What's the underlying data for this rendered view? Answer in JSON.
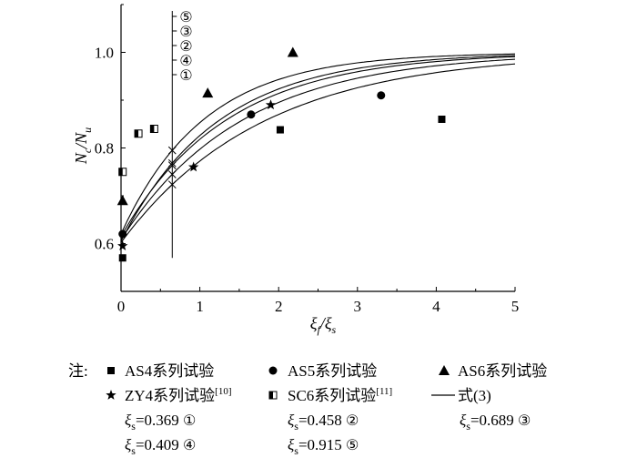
{
  "chart_data": {
    "type": "scatter",
    "xlabel": {
      "main": "ξ",
      "sub1": "f",
      "mid": "/ξ",
      "sub2": "s"
    },
    "ylabel": {
      "n1": "N",
      "s1": "c",
      "mid": "/N",
      "n2": "N",
      "s2": "u"
    },
    "xlim": [
      0,
      5
    ],
    "ylim": [
      0.5,
      1.1
    ],
    "xticks": [
      "0",
      "1",
      "2",
      "3",
      "4",
      "5"
    ],
    "yticks": [
      "0.6",
      "0.8",
      "1.0"
    ],
    "ytick_values": [
      0.6,
      0.8,
      1.0
    ],
    "series": [
      {
        "name": "AS4系列试验",
        "marker": "square",
        "points": [
          [
            0.02,
            0.57
          ],
          [
            2.02,
            0.838
          ],
          [
            4.07,
            0.86
          ]
        ]
      },
      {
        "name": "AS5系列试验",
        "marker": "circle",
        "points": [
          [
            0.02,
            0.62
          ],
          [
            1.65,
            0.87
          ],
          [
            3.3,
            0.91
          ]
        ]
      },
      {
        "name": "AS6系列试验",
        "marker": "triangle",
        "points": [
          [
            0.02,
            0.69
          ],
          [
            1.1,
            0.915
          ],
          [
            2.18,
            1.0
          ]
        ]
      },
      {
        "name": "ZY4系列试验",
        "sup": "[10]",
        "marker": "star",
        "points": [
          [
            0.02,
            0.595
          ],
          [
            0.92,
            0.76
          ],
          [
            1.9,
            0.89
          ]
        ]
      },
      {
        "name": "SC6系列试验",
        "sup": "[11]",
        "marker": "halfsquare",
        "points": [
          [
            0.02,
            0.75
          ],
          [
            0.22,
            0.83
          ],
          [
            0.42,
            0.84
          ]
        ]
      }
    ],
    "curves": [
      {
        "id": "1",
        "a": 0.62,
        "b": 0.38,
        "k": 0.95,
        "label_xi": "0.369",
        "circled": "①"
      },
      {
        "id": "2",
        "a": 0.615,
        "b": 0.385,
        "k": 0.75,
        "label_xi": "0.458",
        "circled": "②"
      },
      {
        "id": "3",
        "a": 0.608,
        "b": 0.392,
        "k": 0.66,
        "label_xi": "0.689",
        "circled": "③"
      },
      {
        "id": "4",
        "a": 0.605,
        "b": 0.395,
        "k": 0.82,
        "label_xi": "0.409",
        "circled": "④"
      },
      {
        "id": "5",
        "a": 0.602,
        "b": 0.398,
        "k": 0.56,
        "label_xi": "0.915",
        "circled": "⑤"
      }
    ],
    "curve_legend_name": "式(3)",
    "marker_line_x": 0.65,
    "marker_labels": [
      "⑤",
      "③",
      "②",
      "④",
      "①"
    ]
  },
  "legend": {
    "note": "注:",
    "xi_prefix": "ξ",
    "xi_sub": "s",
    "xi_eq": "="
  }
}
